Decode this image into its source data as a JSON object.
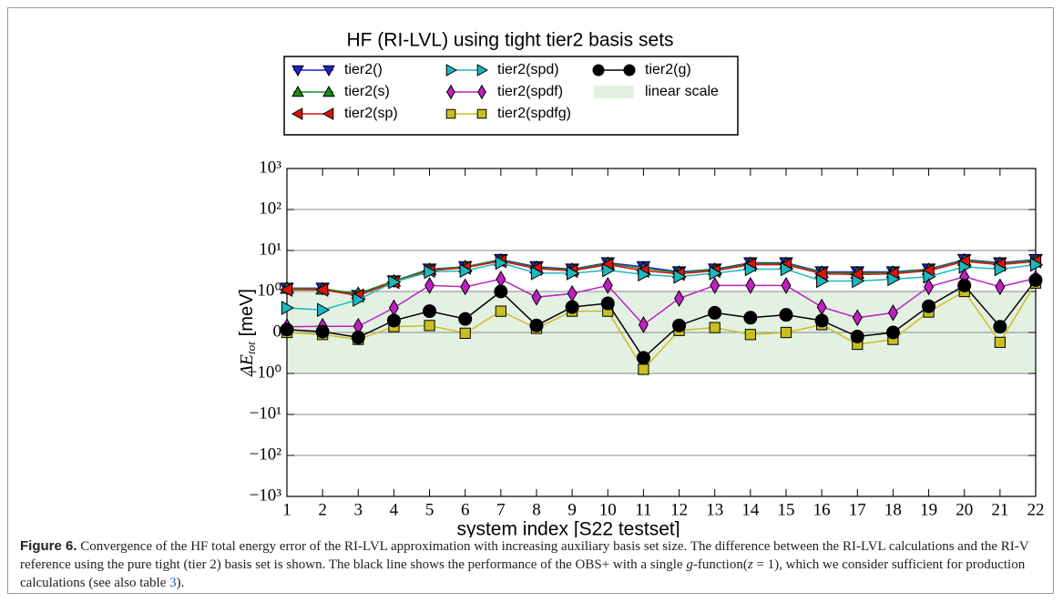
{
  "chart_data": {
    "type": "line",
    "title": "HF (RI-LVL) using tight tier2 basis sets",
    "x_label": "system index [S22 testset]",
    "y_label": {
      "main": "ΔE",
      "sub": "tot",
      "unit": "[meV]"
    },
    "x": [
      1,
      2,
      3,
      4,
      5,
      6,
      7,
      8,
      9,
      10,
      11,
      12,
      13,
      14,
      15,
      16,
      17,
      18,
      19,
      20,
      21,
      22
    ],
    "xlim": [
      1,
      22
    ],
    "xticks": [
      1,
      2,
      3,
      4,
      5,
      6,
      7,
      8,
      9,
      10,
      11,
      12,
      13,
      14,
      15,
      16,
      17,
      18,
      19,
      20,
      21,
      22
    ],
    "yscale": "symlog",
    "linthresh": 1,
    "ylim": [
      -1000,
      1000
    ],
    "yticks": [
      {
        "value": 1000,
        "label": "10³"
      },
      {
        "value": 100,
        "label": "10²"
      },
      {
        "value": 10,
        "label": "10¹"
      },
      {
        "value": 1,
        "label": "10⁰"
      },
      0,
      {
        "value": -1,
        "label": "−10⁰"
      },
      {
        "value": -10,
        "label": "−10¹"
      },
      {
        "value": -100,
        "label": "−10²"
      },
      {
        "value": -1000,
        "label": "−10³"
      }
    ],
    "grid": true,
    "linear_region": {
      "label": "linear scale",
      "range": [
        -1,
        1
      ],
      "color": "#e3f1e3"
    },
    "series": [
      {
        "name": "tier2()",
        "color": "#1f1fd0",
        "marker": "triangle-down",
        "values": [
          1.2,
          1.2,
          0.9,
          1.8,
          3.5,
          4,
          6,
          4,
          3.5,
          5,
          4,
          3,
          3.5,
          5,
          5,
          3,
          3,
          3,
          3.5,
          6,
          5,
          6
        ]
      },
      {
        "name": "tier2(s)",
        "color": "#1a8a1a",
        "marker": "triangle-up",
        "values": [
          1.2,
          1.15,
          0.95,
          1.8,
          3.4,
          4,
          5.8,
          3.8,
          3.4,
          4.8,
          3.6,
          2.9,
          3.4,
          4.8,
          4.8,
          2.9,
          2.8,
          2.9,
          3.4,
          5.8,
          4.8,
          5.8
        ]
      },
      {
        "name": "tier2(sp)",
        "color": "#e01010",
        "marker": "triangle-left",
        "values": [
          1.1,
          1.1,
          0.9,
          1.7,
          3.2,
          3.8,
          5.5,
          3.6,
          3.2,
          4.5,
          3.2,
          2.7,
          3.2,
          4.5,
          4.5,
          2.7,
          2.6,
          2.7,
          3.2,
          5.4,
          4.5,
          5.4
        ]
      },
      {
        "name": "tier2(spd)",
        "color": "#1ab8c0",
        "marker": "triangle-right",
        "values": [
          0.6,
          0.55,
          0.8,
          1.7,
          3,
          3.2,
          5,
          2.8,
          2.8,
          3.3,
          2.6,
          2.3,
          2.8,
          3.5,
          3.5,
          1.8,
          1.8,
          2,
          2.3,
          4,
          3.5,
          4.5
        ]
      },
      {
        "name": "tier2(spdf)",
        "color": "#c020c0",
        "marker": "diamond",
        "values": [
          0.14,
          0.15,
          0.15,
          0.6,
          1.4,
          1.3,
          2,
          0.86,
          0.95,
          1.4,
          0.19,
          0.83,
          1.4,
          1.4,
          1.4,
          0.62,
          0.36,
          0.48,
          1.3,
          2.3,
          1.3,
          2.1
        ]
      },
      {
        "name": "tier2(spdfg)",
        "color": "#c8c020",
        "marker": "square",
        "values": [
          0,
          -0.05,
          -0.17,
          0.14,
          0.17,
          -0.02,
          0.52,
          0.1,
          0.52,
          0.52,
          -0.9,
          0.05,
          0.12,
          -0.05,
          0,
          0.19,
          -0.29,
          -0.17,
          0.5,
          1,
          -0.24,
          1.6
        ]
      },
      {
        "name": "tier2(g)",
        "color": "#000000",
        "marker": "circle",
        "values": [
          0.07,
          0.02,
          -0.12,
          0.29,
          0.52,
          0.33,
          1,
          0.17,
          0.62,
          0.71,
          -0.62,
          0.17,
          0.48,
          0.36,
          0.43,
          0.29,
          -0.1,
          0,
          0.64,
          1.4,
          0.14,
          1.9
        ]
      }
    ]
  },
  "caption": {
    "label": "Figure 6.",
    "text1": "Convergence of the HF total energy error of the RI-LVL approximation with increasing auxiliary basis set size. The difference between the RI-LVL calculations and the RI-V reference using the pure tight (tier 2) basis set is shown. The black line shows the performance of the OBS+ with a single ",
    "italic1": "g",
    "text2": "-function(",
    "italic2": "z",
    "text3": " = 1), which we consider sufficient for production calculations (see also table ",
    "ref": "3",
    "text4": ")."
  }
}
